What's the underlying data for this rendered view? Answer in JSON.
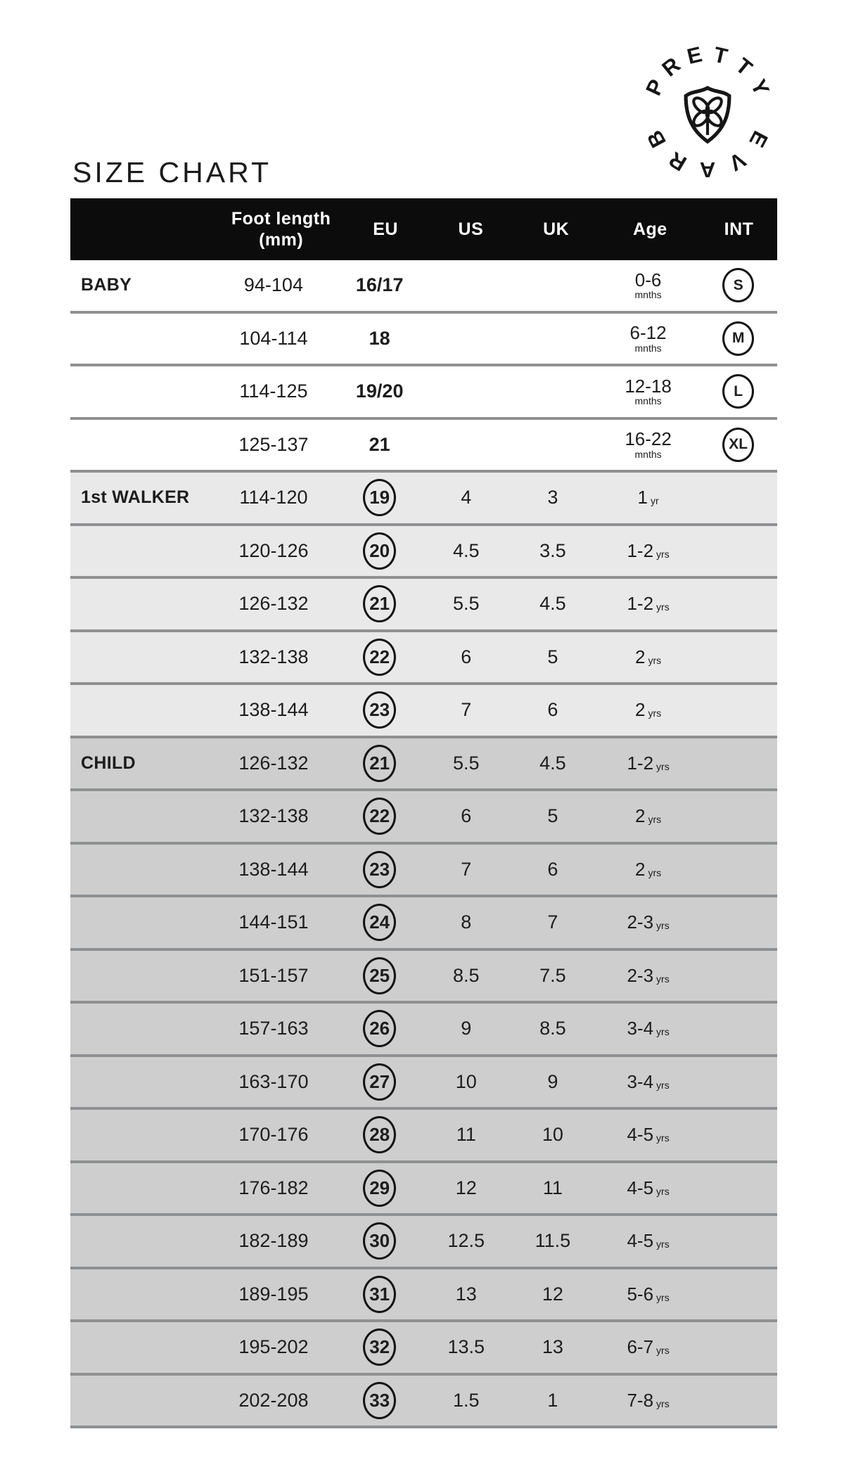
{
  "title": "SIZE CHART",
  "logo": {
    "top_text": "PRETTY",
    "bottom_text": "BRAVE",
    "icon": "shield-flower-icon"
  },
  "colors": {
    "header_bg": "#0c0c0c",
    "baby_row_bg": "#ffffff",
    "walker_row_bg": "#e9e9ea",
    "child_row_bg": "#cecece",
    "separator": "#8e9092",
    "text": "#1d1d1e"
  },
  "table": {
    "headers": {
      "category": "",
      "foot_line1": "Foot length",
      "foot_line2": "(mm)",
      "eu": "EU",
      "us": "US",
      "uk": "UK",
      "age": "Age",
      "int": "INT"
    },
    "rows": [
      {
        "category": "BABY",
        "foot": "94-104",
        "eu": "16/17",
        "us": "",
        "uk": "",
        "age": "0-6",
        "age_unit": "mnths",
        "int": "S"
      },
      {
        "category": "",
        "foot": "104-114",
        "eu": "18",
        "us": "",
        "uk": "",
        "age": "6-12",
        "age_unit": "mnths",
        "int": "M"
      },
      {
        "category": "",
        "foot": "114-125",
        "eu": "19/20",
        "us": "",
        "uk": "",
        "age": "12-18",
        "age_unit": "mnths",
        "int": "L"
      },
      {
        "category": "",
        "foot": "125-137",
        "eu": "21",
        "us": "",
        "uk": "",
        "age": "16-22",
        "age_unit": "mnths",
        "int": "XL"
      },
      {
        "category": "1st WALKER",
        "foot": "114-120",
        "eu": "19",
        "us": "4",
        "uk": "3",
        "age": "1",
        "age_unit": "yr",
        "int": ""
      },
      {
        "category": "",
        "foot": "120-126",
        "eu": "20",
        "us": "4.5",
        "uk": "3.5",
        "age": "1-2",
        "age_unit": "yrs",
        "int": ""
      },
      {
        "category": "",
        "foot": "126-132",
        "eu": "21",
        "us": "5.5",
        "uk": "4.5",
        "age": "1-2",
        "age_unit": "yrs",
        "int": ""
      },
      {
        "category": "",
        "foot": "132-138",
        "eu": "22",
        "us": "6",
        "uk": "5",
        "age": "2",
        "age_unit": "yrs",
        "int": ""
      },
      {
        "category": "",
        "foot": "138-144",
        "eu": "23",
        "us": "7",
        "uk": "6",
        "age": "2",
        "age_unit": "yrs",
        "int": ""
      },
      {
        "category": "CHILD",
        "foot": "126-132",
        "eu": "21",
        "us": "5.5",
        "uk": "4.5",
        "age": "1-2",
        "age_unit": "yrs",
        "int": ""
      },
      {
        "category": "",
        "foot": "132-138",
        "eu": "22",
        "us": "6",
        "uk": "5",
        "age": "2",
        "age_unit": "yrs",
        "int": ""
      },
      {
        "category": "",
        "foot": "138-144",
        "eu": "23",
        "us": "7",
        "uk": "6",
        "age": "2",
        "age_unit": "yrs",
        "int": ""
      },
      {
        "category": "",
        "foot": "144-151",
        "eu": "24",
        "us": "8",
        "uk": "7",
        "age": "2-3",
        "age_unit": "yrs",
        "int": ""
      },
      {
        "category": "",
        "foot": "151-157",
        "eu": "25",
        "us": "8.5",
        "uk": "7.5",
        "age": "2-3",
        "age_unit": "yrs",
        "int": ""
      },
      {
        "category": "",
        "foot": "157-163",
        "eu": "26",
        "us": "9",
        "uk": "8.5",
        "age": "3-4",
        "age_unit": "yrs",
        "int": ""
      },
      {
        "category": "",
        "foot": "163-170",
        "eu": "27",
        "us": "10",
        "uk": "9",
        "age": "3-4",
        "age_unit": "yrs",
        "int": ""
      },
      {
        "category": "",
        "foot": "170-176",
        "eu": "28",
        "us": "11",
        "uk": "10",
        "age": "4-5",
        "age_unit": "yrs",
        "int": ""
      },
      {
        "category": "",
        "foot": "176-182",
        "eu": "29",
        "us": "12",
        "uk": "11",
        "age": "4-5",
        "age_unit": "yrs",
        "int": ""
      },
      {
        "category": "",
        "foot": "182-189",
        "eu": "30",
        "us": "12.5",
        "uk": "11.5",
        "age": "4-5",
        "age_unit": "yrs",
        "int": ""
      },
      {
        "category": "",
        "foot": "189-195",
        "eu": "31",
        "us": "13",
        "uk": "12",
        "age": "5-6",
        "age_unit": "yrs",
        "int": ""
      },
      {
        "category": "",
        "foot": "195-202",
        "eu": "32",
        "us": "13.5",
        "uk": "13",
        "age": "6-7",
        "age_unit": "yrs",
        "int": ""
      },
      {
        "category": "",
        "foot": "202-208",
        "eu": "33",
        "us": "1.5",
        "uk": "1",
        "age": "7-8",
        "age_unit": "yrs",
        "int": ""
      }
    ]
  }
}
